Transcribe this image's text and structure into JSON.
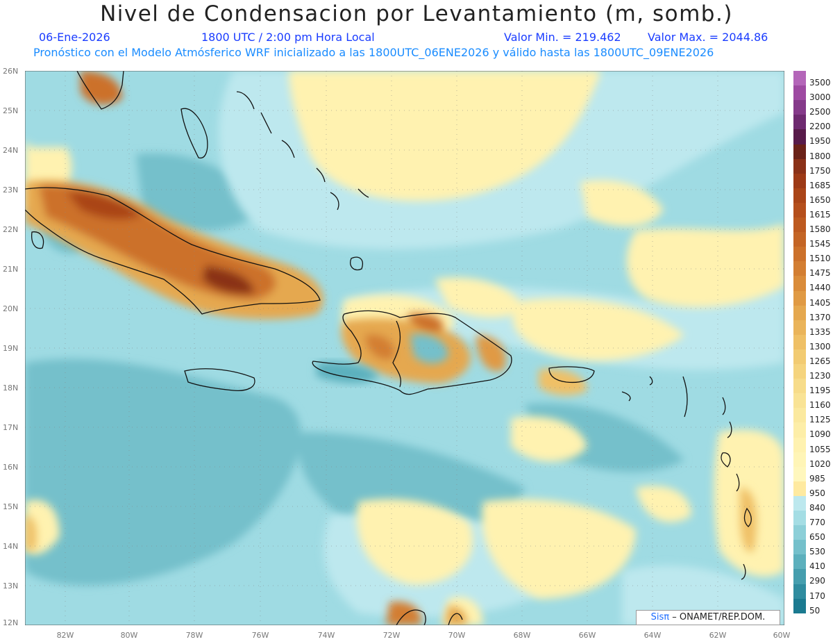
{
  "header": {
    "title": "Nivel de Condensacion por Levantamiento (m, somb.)",
    "date": "06-Ene-2026",
    "time": "1800 UTC / 2:00 pm Hora Local",
    "min_label": "Valor Min. = 219.462",
    "max_label": "Valor Max. = 2044.86",
    "model_line": "Pronóstico con el Modelo Atmósferico WRF inicializado a las 1800UTC_06ENE2026 y válido hasta las  1800UTC_09ENE2026"
  },
  "map": {
    "lat_labels": [
      "26N",
      "25N",
      "24N",
      "23N",
      "22N",
      "21N",
      "20N",
      "19N",
      "18N",
      "17N",
      "16N",
      "15N",
      "14N",
      "13N",
      "12N"
    ],
    "lon_labels": [
      "82W",
      "80W",
      "78W",
      "76W",
      "74W",
      "72W",
      "70W",
      "68W",
      "66W",
      "64W",
      "62W",
      "60W"
    ],
    "ocean_color": "#9fdbe3"
  },
  "legend": {
    "values": [
      "3500",
      "3000",
      "2500",
      "2200",
      "1950",
      "1800",
      "1750",
      "1685",
      "1650",
      "1615",
      "1580",
      "1545",
      "1510",
      "1475",
      "1440",
      "1405",
      "1370",
      "1335",
      "1300",
      "1265",
      "1230",
      "1195",
      "1160",
      "1125",
      "1090",
      "1055",
      "1020",
      "985",
      "950",
      "840",
      "770",
      "650",
      "530",
      "410",
      "290",
      "170",
      "50"
    ],
    "colors": [
      "#b466b9",
      "#9e4aa2",
      "#853a8a",
      "#6e2a70",
      "#581b4a",
      "#6b2218",
      "#8a3118",
      "#9d3a16",
      "#aa4518",
      "#b54f1c",
      "#bd5a20",
      "#c46525",
      "#cc712b",
      "#d37e32",
      "#da8c3a",
      "#e09a44",
      "#e5a84f",
      "#eab45a",
      "#efc066",
      "#f2cb72",
      "#f5d47e",
      "#f7dc8a",
      "#f9e395",
      "#fbe99f",
      "#fdeea8",
      "#fff2b0",
      "#fff5b7",
      "#fff7bd",
      "#ffeaa0",
      "#bde8ee",
      "#a4dde4",
      "#8ccfd8",
      "#74c0cb",
      "#5cb0bd",
      "#459eae",
      "#2f8c9f",
      "#1b7a90"
    ]
  },
  "credit": {
    "sis": "Sisπ",
    "text": "– ONAMET/REP.DOM."
  }
}
